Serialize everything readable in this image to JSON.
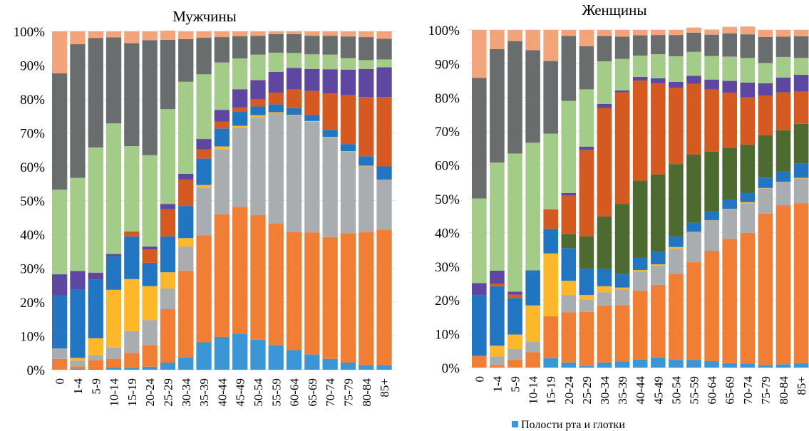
{
  "chart_data": [
    {
      "type": "bar",
      "stacked": true,
      "percent_stacked": true,
      "title": "Мужчины",
      "xlabel": "",
      "ylabel": "",
      "ylim": [
        0,
        100
      ],
      "yticks": [
        "0%",
        "10%",
        "20%",
        "30%",
        "40%",
        "50%",
        "60%",
        "70%",
        "80%",
        "90%",
        "100%"
      ],
      "grid": true,
      "categories": [
        "0",
        "1-4",
        "5-9",
        "10-14",
        "15-19",
        "20-24",
        "25-29",
        "30-34",
        "35-39",
        "40-44",
        "45-49",
        "50-54",
        "55-59",
        "60-64",
        "65-69",
        "70-74",
        "75-79",
        "80-84",
        "85+"
      ],
      "series": [
        {
          "name": "Полости рта и глотки",
          "color": "#3A96D4",
          "values": [
            0,
            0.3,
            0.2,
            0.7,
            0.6,
            0.9,
            2.1,
            3.6,
            8.1,
            9.7,
            10.7,
            8.9,
            7.3,
            5.8,
            4.5,
            3.2,
            2.1,
            1.4,
            1.4
          ]
        },
        {
          "name": "",
          "color": "#F07F35",
          "values": [
            3.2,
            0.7,
            2.7,
            2.6,
            4.4,
            6.4,
            15.8,
            25.7,
            31.6,
            36.2,
            37.4,
            36.8,
            36.0,
            35.0,
            36.1,
            36.0,
            38.2,
            39.3,
            40.0
          ]
        },
        {
          "name": "",
          "color": "#A9ADB0",
          "values": [
            3.1,
            1.7,
            1.4,
            3.3,
            6.4,
            7.4,
            6.1,
            7.1,
            14.1,
            19.3,
            23.4,
            29.0,
            32.5,
            34.3,
            32.7,
            29.4,
            24.1,
            19.4,
            14.8
          ]
        },
        {
          "name": "",
          "color": "#FDB72B",
          "values": [
            0,
            0.8,
            5.0,
            17.0,
            15.4,
            10.0,
            4.8,
            2.5,
            0.8,
            0.8,
            0.6,
            0.5,
            0.3,
            0.2,
            0.2,
            0.2,
            0.2,
            0.2,
            0
          ]
        },
        {
          "name": "",
          "color": "#2275C0",
          "values": [
            15.7,
            20.2,
            17.3,
            9.9,
            12.6,
            6.9,
            10.6,
            9.5,
            7.8,
            5.3,
            4.1,
            2.6,
            2.3,
            2.0,
            1.8,
            2.1,
            2.1,
            2.8,
            3.9
          ]
        },
        {
          "name": "",
          "color": "#4D6B31",
          "values": [
            0,
            0,
            0,
            0,
            0,
            0,
            0,
            0,
            0,
            0,
            0,
            0,
            0,
            0,
            0,
            0,
            0,
            0,
            0
          ]
        },
        {
          "name": "",
          "color": "#D45A22",
          "values": [
            0,
            0,
            0,
            0,
            1.5,
            3.9,
            8.0,
            7.8,
            2.7,
            2.0,
            1.3,
            2.2,
            3.5,
            5.5,
            7.1,
            10.8,
            14.4,
            17.5,
            20.5
          ]
        },
        {
          "name": "",
          "color": "#5E47A0",
          "values": [
            6.2,
            5.5,
            2.1,
            0.7,
            0,
            0.9,
            1.6,
            1.7,
            3.1,
            3.5,
            5.4,
            5.6,
            6.1,
            6.4,
            6.5,
            7.1,
            7.6,
            8.3,
            8.8
          ]
        },
        {
          "name": "",
          "color": "#A3CC88",
          "values": [
            25.0,
            27.5,
            37.0,
            38.6,
            25.2,
            27.0,
            28.0,
            27.2,
            19.1,
            14.0,
            9.1,
            7.5,
            5.7,
            4.4,
            4.3,
            4.3,
            3.4,
            2.6,
            2.3
          ]
        },
        {
          "name": "",
          "color": "#6A6D6E",
          "values": [
            34.4,
            39.5,
            32.3,
            25.4,
            30.4,
            34.0,
            20.5,
            12.6,
            10.8,
            7.5,
            6.6,
            5.6,
            5.5,
            5.6,
            5.5,
            5.6,
            6.4,
            6.8,
            6.1
          ]
        },
        {
          "name": "",
          "color": "#F4A47A",
          "values": [
            12.4,
            3.8,
            2.0,
            1.8,
            3.5,
            2.6,
            2.7,
            2.3,
            1.9,
            1.7,
            1.4,
            1.3,
            0.8,
            0.8,
            1.3,
            1.3,
            1.5,
            1.7,
            2.2
          ]
        }
      ]
    },
    {
      "type": "bar",
      "stacked": true,
      "percent_stacked": true,
      "title": "Женщины",
      "xlabel": "",
      "ylabel": "",
      "ylim": [
        0,
        100
      ],
      "yticks": [
        "0%",
        "10%",
        "20%",
        "30%",
        "40%",
        "50%",
        "60%",
        "70%",
        "80%",
        "90%",
        "100%"
      ],
      "grid": true,
      "categories": [
        "0",
        "1-4",
        "5-9",
        "10-14",
        "15-19",
        "20-24",
        "25-29",
        "30-34",
        "35-39",
        "40-44",
        "45-49",
        "50-54",
        "55-59",
        "60-64",
        "65-69",
        "70-74",
        "75-79",
        "80-84",
        "85+"
      ],
      "series": [
        {
          "name": "Полости рта и глотки",
          "color": "#3A96D4",
          "values": [
            0,
            0,
            0,
            0,
            2.8,
            1.5,
            0.5,
            1.5,
            1.8,
            2.4,
            3.0,
            2.3,
            2.3,
            1.9,
            1.3,
            1.2,
            0.8,
            1.0,
            1.3
          ]
        },
        {
          "name": "",
          "color": "#F07F35",
          "values": [
            3.5,
            0.8,
            2.3,
            4.6,
            12.4,
            14.9,
            16.0,
            16.9,
            16.7,
            20.4,
            21.5,
            25.5,
            28.9,
            32.7,
            36.8,
            38.7,
            44.8,
            47.0,
            47.4
          ]
        },
        {
          "name": "",
          "color": "#A9ADB0",
          "values": [
            0,
            2.5,
            3.2,
            3.0,
            0,
            5.1,
            3.6,
            3.9,
            4.6,
            5.7,
            5.7,
            7.4,
            8.9,
            8.9,
            8.8,
            8.8,
            7.5,
            6.9,
            7.3
          ]
        },
        {
          "name": "",
          "color": "#FDB72B",
          "values": [
            0,
            3.2,
            4.3,
            10.8,
            18.6,
            4.2,
            1.4,
            1.8,
            0.6,
            0.4,
            0.4,
            0.5,
            0.1,
            0.1,
            0.1,
            0.3,
            0.1,
            0.1,
            0.2
          ]
        },
        {
          "name": "",
          "color": "#2275C0",
          "values": [
            18.0,
            17.6,
            10.8,
            10.4,
            7.3,
            9.7,
            7.8,
            5.1,
            4.0,
            3.6,
            3.6,
            3.1,
            2.7,
            2.7,
            2.8,
            2.8,
            3.1,
            3.1,
            4.2
          ]
        },
        {
          "name": "",
          "color": "#4D6B31",
          "values": [
            0,
            0,
            0,
            0,
            0,
            4.2,
            9.6,
            15.6,
            20.8,
            22.9,
            23.0,
            21.5,
            20.2,
            17.7,
            15.3,
            14.2,
            12.5,
            12.2,
            11.8
          ]
        },
        {
          "name": "",
          "color": "#D45A22",
          "values": [
            0,
            0.8,
            1.0,
            0,
            5.8,
            11.3,
            25.5,
            32.1,
            33.0,
            29.6,
            27.0,
            22.6,
            20.9,
            18.4,
            16.3,
            14.0,
            11.8,
            11.2,
            9.5
          ]
        },
        {
          "name": "",
          "color": "#5E47A0",
          "values": [
            3.5,
            3.8,
            0.9,
            0,
            0,
            0.8,
            1.0,
            1.2,
            0.6,
            1.1,
            1.5,
            1.7,
            2.4,
            2.9,
            3.5,
            4.4,
            3.6,
            4.4,
            5.0
          ]
        },
        {
          "name": "",
          "color": "#A3CC88",
          "values": [
            25.1,
            32.0,
            40.9,
            37.8,
            22.4,
            27.3,
            17.0,
            12.6,
            9.3,
            6.3,
            7.1,
            7.6,
            7.1,
            7.0,
            7.2,
            7.3,
            6.0,
            6.1,
            5.0
          ]
        },
        {
          "name": "",
          "color": "#6A6D6E",
          "values": [
            35.7,
            33.6,
            33.3,
            27.4,
            21.5,
            19.2,
            12.8,
            7.5,
            6.6,
            6.0,
            5.7,
            6.3,
            5.7,
            6.3,
            6.9,
            7.0,
            7.7,
            6.0,
            6.4
          ]
        },
        {
          "name": "",
          "color": "#F4A47A",
          "values": [
            14.2,
            5.7,
            3.3,
            6.0,
            9.2,
            1.8,
            4.8,
            1.8,
            2.0,
            1.6,
            1.5,
            1.5,
            1.5,
            1.5,
            1.9,
            2.3,
            2.1,
            2.0,
            1.9
          ]
        }
      ]
    }
  ],
  "legend": {
    "placement": "bottom",
    "visible_entries": [
      {
        "label": "Полости рта и глотки",
        "color": "#3A96D4"
      }
    ]
  }
}
